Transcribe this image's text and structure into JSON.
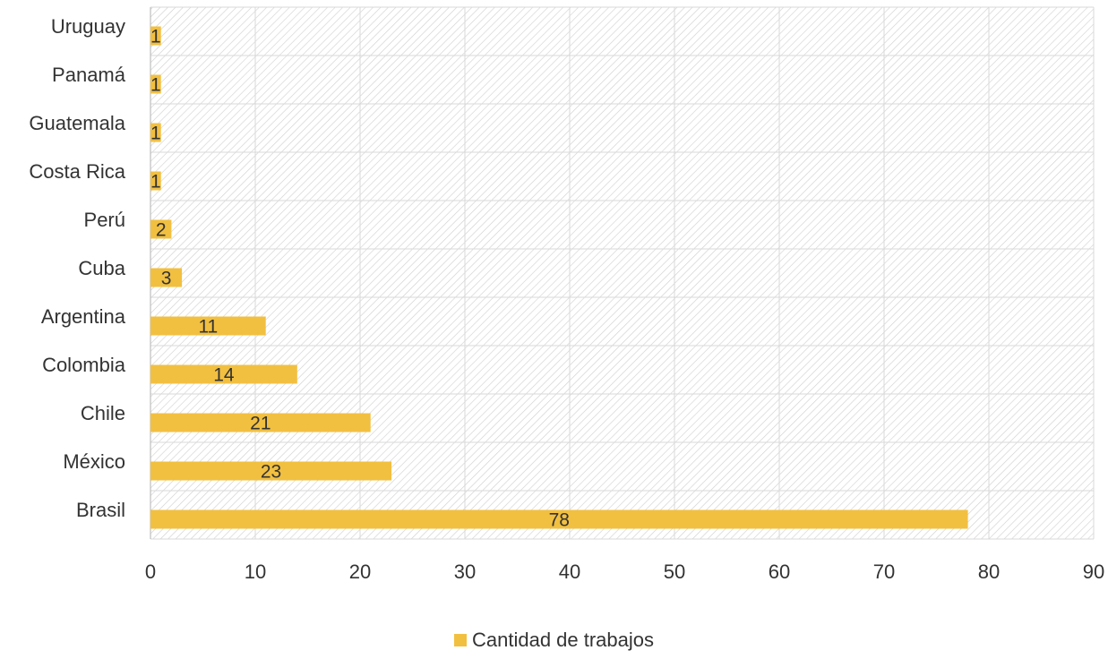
{
  "chart_data": {
    "type": "bar",
    "orientation": "horizontal",
    "categories": [
      "Uruguay",
      "Panamá",
      "Guatemala",
      "Costa Rica",
      "Perú",
      "Cuba",
      "Argentina",
      "Colombia",
      "Chile",
      "México",
      "Brasil"
    ],
    "series": [
      {
        "name": "Cantidad de trabajos",
        "values": [
          1,
          1,
          1,
          1,
          2,
          3,
          11,
          14,
          21,
          23,
          78
        ],
        "color": "#F2C040"
      }
    ],
    "xlim": [
      0,
      90
    ],
    "xticks": [
      0,
      10,
      20,
      30,
      40,
      50,
      60,
      70,
      80,
      90
    ],
    "grid": true,
    "legend_position": "bottom-center",
    "data_labels": true
  }
}
